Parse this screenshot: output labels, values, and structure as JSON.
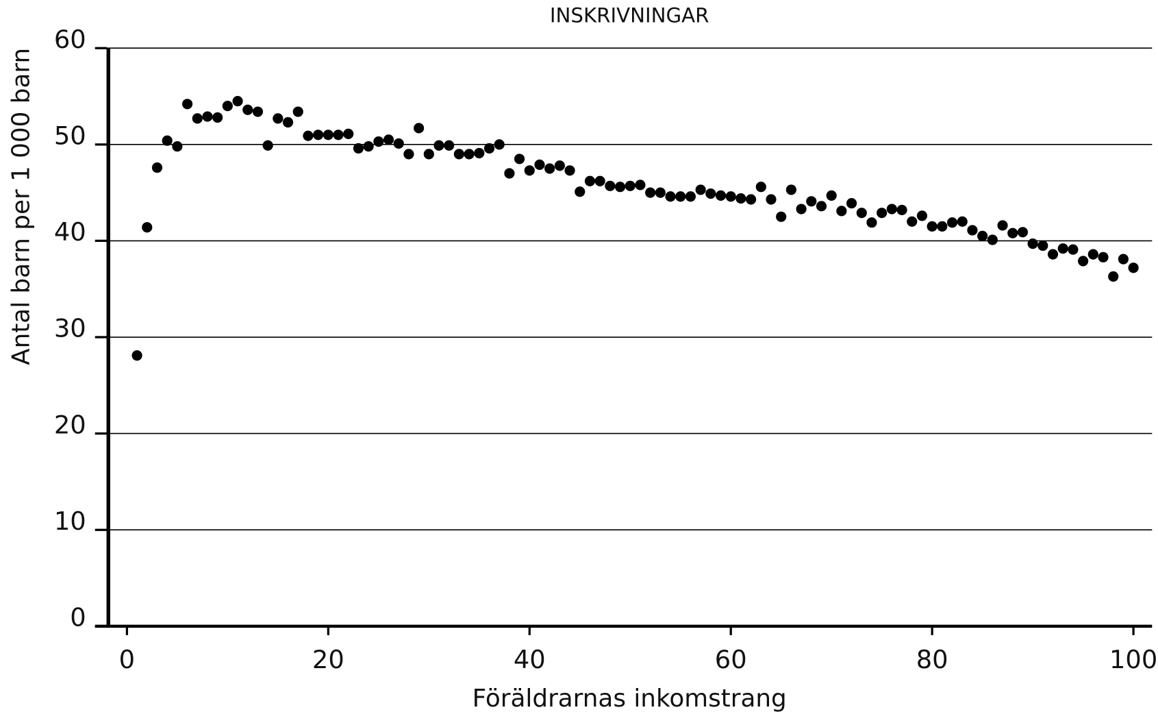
{
  "chart_data": {
    "type": "scatter",
    "title": "INSKRIVNINGAR",
    "xlabel": "Föräldrarnas inkomstrang",
    "ylabel": "Antal barn per 1 000 barn",
    "x": [
      1,
      2,
      3,
      4,
      5,
      6,
      7,
      8,
      9,
      10,
      11,
      12,
      13,
      14,
      15,
      16,
      17,
      18,
      19,
      20,
      21,
      22,
      23,
      24,
      25,
      26,
      27,
      28,
      29,
      30,
      31,
      32,
      33,
      34,
      35,
      36,
      37,
      38,
      39,
      40,
      41,
      42,
      43,
      44,
      45,
      46,
      47,
      48,
      49,
      50,
      51,
      52,
      53,
      54,
      55,
      56,
      57,
      58,
      59,
      60,
      61,
      62,
      63,
      64,
      65,
      66,
      67,
      68,
      69,
      70,
      71,
      72,
      73,
      74,
      75,
      76,
      77,
      78,
      79,
      80,
      81,
      82,
      83,
      84,
      85,
      86,
      87,
      88,
      89,
      90,
      91,
      92,
      93,
      94,
      95,
      96,
      97,
      98,
      99,
      100
    ],
    "values": [
      28.1,
      41.4,
      47.6,
      50.4,
      49.8,
      54.2,
      52.7,
      52.9,
      52.8,
      54.0,
      54.5,
      53.6,
      53.4,
      49.9,
      52.7,
      52.3,
      53.4,
      50.9,
      51.0,
      51.0,
      51.0,
      51.1,
      49.6,
      49.8,
      50.3,
      50.5,
      50.1,
      49.0,
      51.7,
      49.0,
      49.9,
      49.9,
      49.0,
      49.0,
      49.1,
      49.6,
      50.0,
      47.0,
      48.5,
      47.3,
      47.9,
      47.5,
      47.8,
      47.3,
      45.1,
      46.2,
      46.2,
      45.7,
      45.6,
      45.7,
      45.8,
      45.0,
      45.0,
      44.6,
      44.6,
      44.6,
      45.3,
      44.9,
      44.7,
      44.6,
      44.4,
      44.3,
      45.6,
      44.3,
      42.5,
      45.3,
      43.3,
      44.1,
      43.6,
      44.7,
      43.1,
      43.9,
      42.9,
      41.9,
      42.9,
      43.3,
      43.2,
      42.0,
      42.6,
      41.5,
      41.5,
      41.9,
      42.0,
      41.1,
      40.5,
      40.1,
      41.6,
      40.8,
      40.9,
      39.7,
      39.5,
      38.6,
      39.2,
      39.1,
      37.9,
      38.6,
      38.3,
      36.3,
      38.1,
      37.2
    ],
    "color": "#000000",
    "xlim": [
      -2,
      102
    ],
    "ylim": [
      0,
      60
    ],
    "xticks": [
      0,
      20,
      40,
      60,
      80,
      100
    ],
    "yticks": [
      0,
      10,
      20,
      30,
      40,
      50,
      60
    ],
    "grid": true
  }
}
